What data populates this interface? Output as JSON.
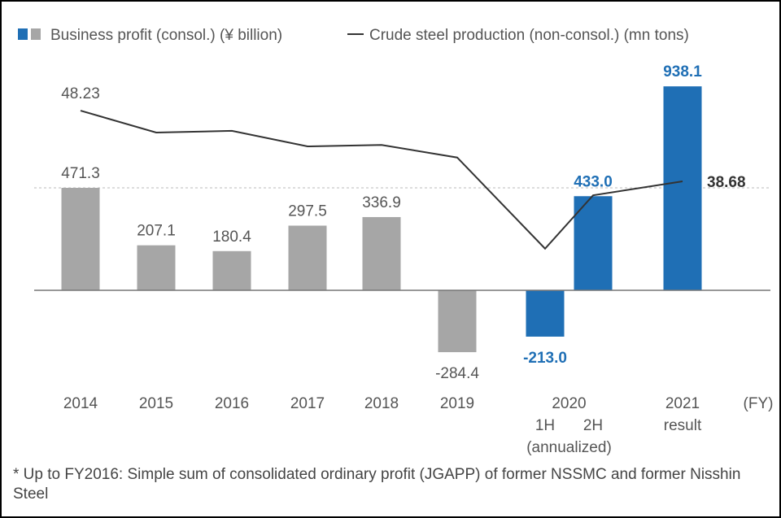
{
  "chart_data": {
    "type": "combo",
    "categories": [
      "2014",
      "2015",
      "2016",
      "2017",
      "2018",
      "2019",
      "1H",
      "2H",
      "2021"
    ],
    "category_notes": [
      null,
      null,
      null,
      null,
      null,
      null,
      null,
      null,
      "result"
    ],
    "category_groups": [
      {
        "label": "2020",
        "note": "(annualized)",
        "members": [
          "1H",
          "2H"
        ]
      }
    ],
    "x_unit": "(FY)",
    "ylim": [
      -430,
      1066
    ],
    "y2lim": [
      11.35,
      55.26
    ],
    "series": [
      {
        "name": "Business profit (consol.) (¥ billion)",
        "type": "bar",
        "colors": [
          "#a6a6a6",
          "#a6a6a6",
          "#a6a6a6",
          "#a6a6a6",
          "#a6a6a6",
          "#a6a6a6",
          "#1f6fb5",
          "#1f6fb5",
          "#1f6fb5"
        ],
        "values": [
          471.3,
          207.1,
          180.4,
          297.5,
          336.9,
          -284.4,
          -213.0,
          433.0,
          938.1
        ],
        "value_labels": [
          "471.3",
          "207.1",
          "180.4",
          "297.5",
          "336.9",
          "-284.4",
          "-213.0",
          "433.0",
          "938.1"
        ]
      },
      {
        "name": "Crude steel production (non-consol.) (mn tons)",
        "type": "line",
        "axis": "y2",
        "color": "#333333",
        "values": [
          48.23,
          45.27,
          45.5,
          43.4,
          43.6,
          41.9,
          29.6,
          36.8,
          38.68
        ]
      }
    ],
    "note": "* Up to FY2016: Simple sum of consolidated ordinary profit (JGAPP) of former NSSMC and former Nisshin Steel"
  }
}
